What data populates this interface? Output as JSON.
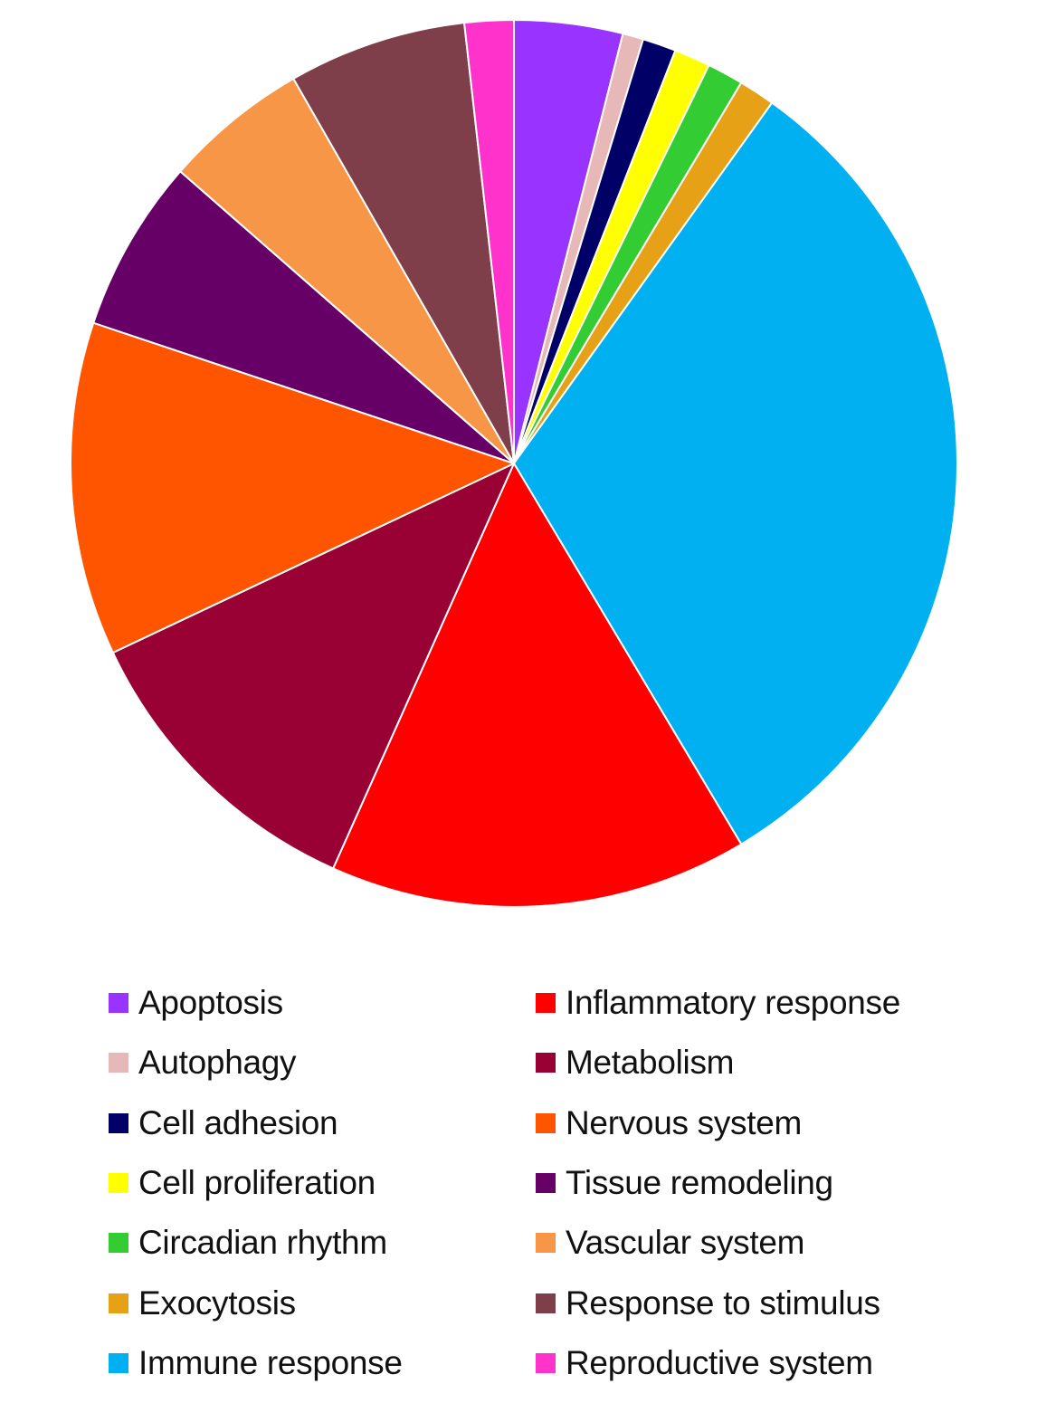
{
  "chart_data": {
    "type": "pie",
    "title": "",
    "start_angle_deg": 0,
    "direction": "clockwise",
    "slices": [
      {
        "label": "Apoptosis",
        "value": 4.2,
        "color": "#9933ff"
      },
      {
        "label": "Autophagy",
        "value": 0.8,
        "color": "#e6b8b7"
      },
      {
        "label": "Cell adhesion",
        "value": 1.3,
        "color": "#000066"
      },
      {
        "label": "Cell proliferation",
        "value": 1.4,
        "color": "#ffff00"
      },
      {
        "label": "Circadian rhythm",
        "value": 1.4,
        "color": "#33cc33"
      },
      {
        "label": "Exocytosis",
        "value": 1.4,
        "color": "#e6a117"
      },
      {
        "label": "Immune response",
        "value": 33.5,
        "color": "#00b0f0"
      },
      {
        "label": "Inflammatory response",
        "value": 16.2,
        "color": "#ff0000"
      },
      {
        "label": "Metabolism",
        "value": 12.0,
        "color": "#990033"
      },
      {
        "label": "Nervous system",
        "value": 12.9,
        "color": "#ff5500"
      },
      {
        "label": "Tissue remodeling",
        "value": 6.7,
        "color": "#660066"
      },
      {
        "label": "Vascular system",
        "value": 5.6,
        "color": "#f79646"
      },
      {
        "label": "Response to stimulus",
        "value": 6.9,
        "color": "#7f3f4a"
      },
      {
        "label": "Reproductive system",
        "value": 1.9,
        "color": "#ff33cc"
      }
    ],
    "legend_position": "bottom"
  },
  "legend": {
    "left_column": [
      "Apoptosis",
      "Autophagy",
      "Cell adhesion",
      "Cell proliferation",
      "Circadian rhythm",
      "Exocytosis",
      "Immune response"
    ],
    "right_column": [
      "Inflammatory response",
      "Metabolism",
      "Nervous system",
      "Tissue remodeling",
      "Vascular system",
      "Response to stimulus",
      "Reproductive system"
    ]
  }
}
